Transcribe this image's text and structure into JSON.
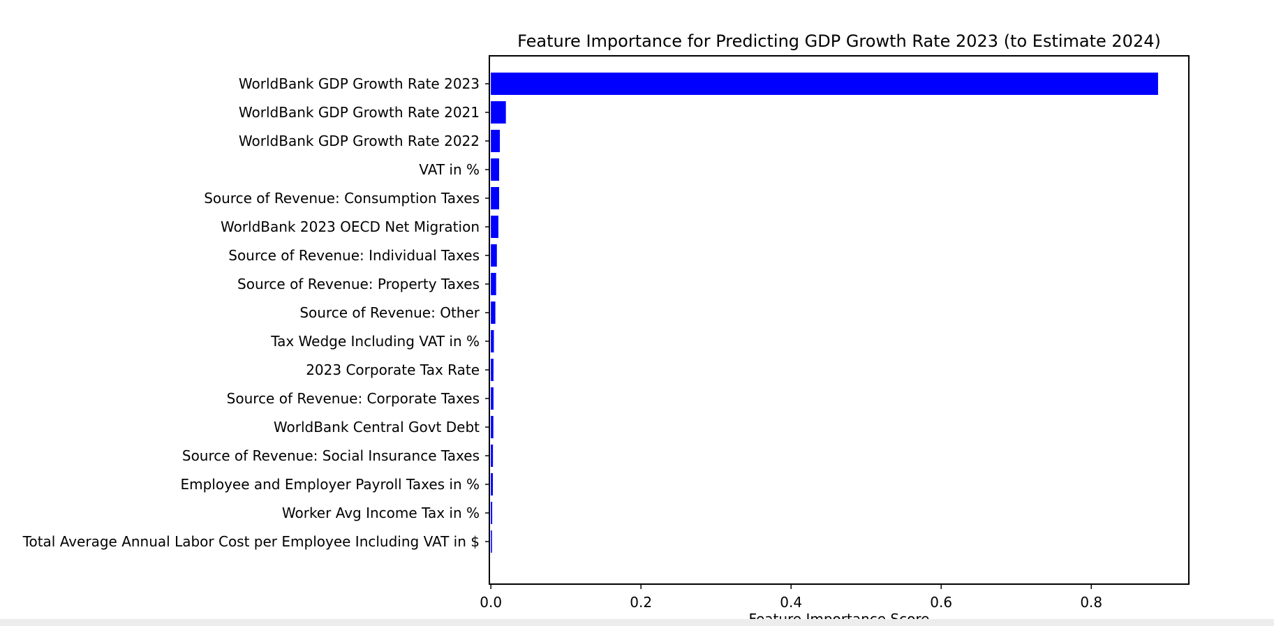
{
  "chart_data": {
    "type": "bar",
    "orientation": "horizontal",
    "title": "Feature Importance for Predicting GDP Growth Rate 2023 (to Estimate 2024)",
    "xlabel": "Feature Importance Score",
    "ylabel": "",
    "xlim": [
      -0.002,
      0.93
    ],
    "xticks": [
      0.0,
      0.2,
      0.4,
      0.6,
      0.8
    ],
    "xtick_labels": [
      "0.0",
      "0.2",
      "0.4",
      "0.6",
      "0.8"
    ],
    "grid": false,
    "bar_color": "#0000ff",
    "categories": [
      "WorldBank GDP Growth Rate 2023",
      "WorldBank GDP Growth Rate 2021",
      "WorldBank GDP Growth Rate 2022",
      "VAT in %",
      "Source of Revenue: Consumption Taxes",
      "WorldBank 2023 OECD Net Migration",
      "Source of Revenue: Individual Taxes",
      "Source of Revenue: Property Taxes",
      "Source of Revenue: Other",
      "Tax Wedge Including VAT in %",
      "2023 Corporate Tax Rate",
      "Source of Revenue: Corporate Taxes",
      "WorldBank Central Govt Debt",
      "Source of Revenue: Social Insurance Taxes",
      "Employee and Employer Payroll Taxes in %",
      "Worker Avg Income Tax in %",
      "Total Average Annual Labor Cost per Employee Including VAT in $"
    ],
    "values": [
      0.889,
      0.02,
      0.012,
      0.011,
      0.011,
      0.01,
      0.008,
      0.007,
      0.006,
      0.004,
      0.0035,
      0.0035,
      0.0033,
      0.0028,
      0.0027,
      0.0018,
      0.0015
    ]
  }
}
